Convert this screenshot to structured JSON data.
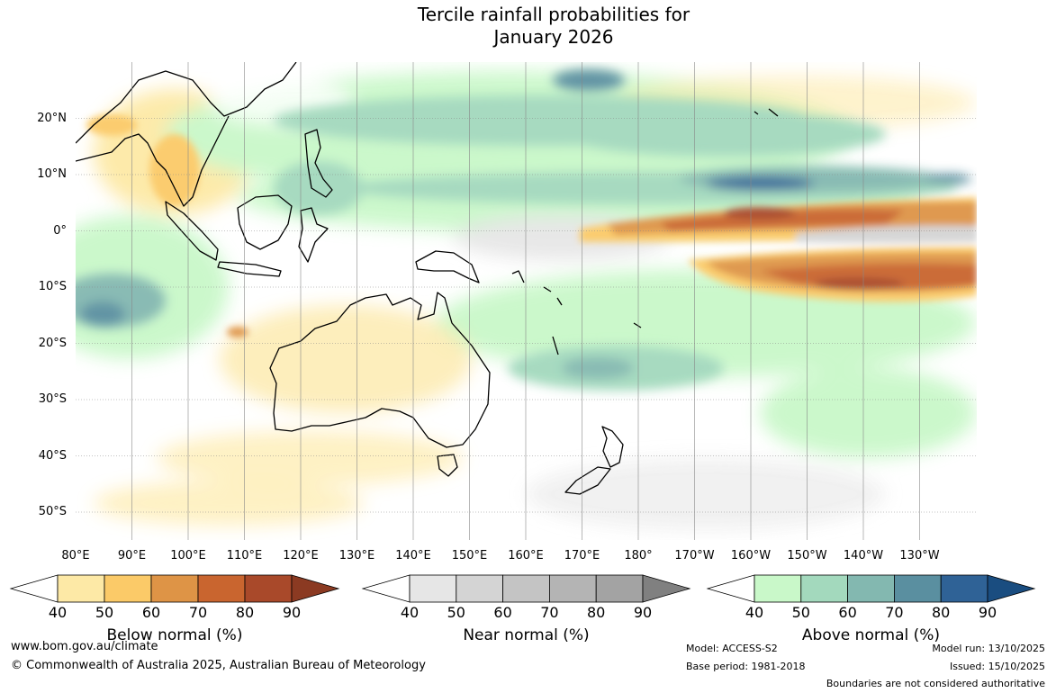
{
  "title": {
    "line1": "Tercile rainfall probabilities for",
    "line2": "January 2026"
  },
  "map": {
    "lat_labels": [
      "20°N",
      "10°N",
      "0°",
      "10°S",
      "20°S",
      "30°S",
      "40°S",
      "50°S"
    ],
    "lon_labels": [
      "80°E",
      "90°E",
      "100°E",
      "110°E",
      "120°E",
      "130°E",
      "140°E",
      "150°E",
      "160°E",
      "170°E",
      "180°",
      "170°W",
      "160°W",
      "150°W",
      "140°W",
      "130°W"
    ]
  },
  "legends": [
    {
      "title": "Below normal (%)",
      "ticks": [
        "40",
        "50",
        "60",
        "70",
        "80",
        "90"
      ],
      "colors": [
        "#ffffff",
        "#fde9a6",
        "#fbca68",
        "#de9446",
        "#c9652f",
        "#a9492a",
        "#8b3a22"
      ]
    },
    {
      "title": "Near normal (%)",
      "ticks": [
        "40",
        "50",
        "60",
        "70",
        "80",
        "90"
      ],
      "colors": [
        "#ffffff",
        "#e6e6e6",
        "#d4d4d4",
        "#c4c4c4",
        "#b4b4b4",
        "#a3a3a3",
        "#808080"
      ]
    },
    {
      "title": "Above normal (%)",
      "ticks": [
        "40",
        "50",
        "60",
        "70",
        "80",
        "90"
      ],
      "colors": [
        "#ffffff",
        "#c9f8c9",
        "#a3d9bd",
        "#83b8b0",
        "#5a8fa0",
        "#2f6296",
        "#1a4d80"
      ]
    }
  ],
  "footer": {
    "website": "www.bom.gov.au/climate",
    "copyright": "© Commonwealth of Australia 2025, Australian Bureau of Meteorology",
    "model": "Model: ACCESS-S2",
    "base_period": "Base period: 1981-2018",
    "model_run": "Model run: 13/10/2025",
    "issued": "Issued: 15/10/2025",
    "disclaimer": "Boundaries are not considered authoritative"
  }
}
